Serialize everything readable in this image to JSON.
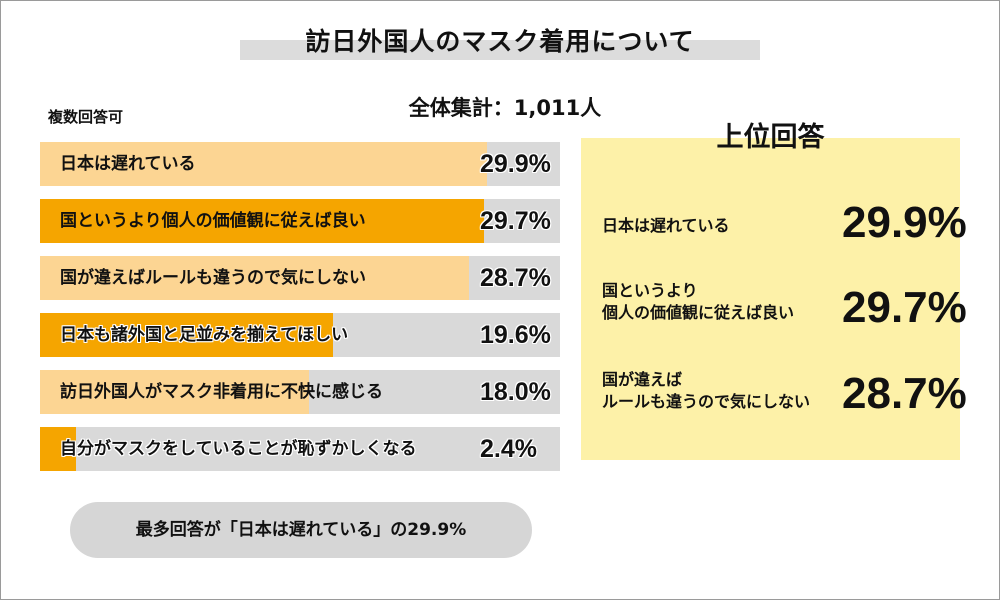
{
  "title": "訪日外国人のマスク着用について",
  "total_label": "全体集計：1,011人",
  "multi_answer_note": "複数回答可",
  "colors": {
    "dark_orange": "#f5a500",
    "light_orange": "#fcd593",
    "bar_background": "#d9d9d9",
    "highlight_box": "#fdf1a8"
  },
  "chart_data": {
    "type": "bar",
    "orientation": "horizontal",
    "title": "訪日外国人のマスク着用について",
    "unit": "%",
    "xlim": [
      0,
      100
    ],
    "categories": [
      "日本は遅れている",
      "国というより個人の価値観に従えば良い",
      "国が違えばルールも違うので気にしない",
      "日本も諸外国と足並みを揃えてほしい",
      "訪日外国人がマスク非着用に不快に感じる",
      "自分がマスクをしていることが恥ずかしくなる"
    ],
    "values": [
      29.9,
      29.7,
      28.7,
      19.6,
      18.0,
      2.4
    ],
    "value_labels": [
      "29.9%",
      "29.7%",
      "28.7%",
      "19.6%",
      "18.0%",
      "2.4%"
    ],
    "bar_colors": [
      "#fcd593",
      "#f5a500",
      "#fcd593",
      "#f5a500",
      "#fcd593",
      "#f5a500"
    ]
  },
  "top_answers": {
    "heading": "上位回答",
    "items": [
      {
        "label_lines": [
          "日本は遅れている"
        ],
        "value": "29.9%"
      },
      {
        "label_lines": [
          "国というより",
          "個人の価値観に従えば良い"
        ],
        "value": "29.7%"
      },
      {
        "label_lines": [
          "国が違えば",
          "ルールも違うので気にしない"
        ],
        "value": "28.7%"
      }
    ]
  },
  "summary": "最多回答が「日本は遅れている」の29.9%"
}
